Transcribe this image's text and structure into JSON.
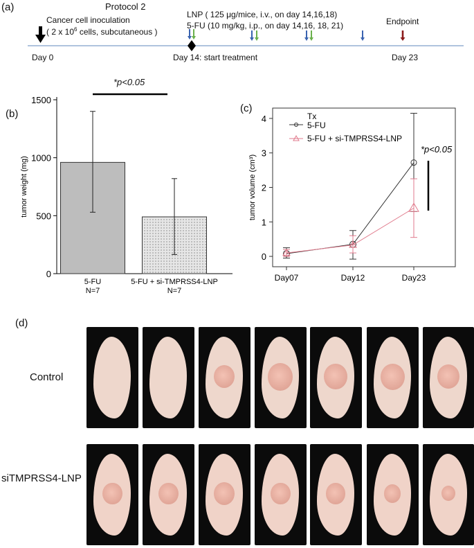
{
  "panel_a": {
    "letter": "(a)",
    "protocol": "Protocol 2",
    "inoculation_line1": "Cancer cell inoculation",
    "inoculation_line2_pre": "( 2 x 10",
    "inoculation_line2_sup": "6",
    "inoculation_line2_post": " cells, subcutaneous )",
    "lnp_text": "LNP ( 125 μg/mice, i.v., on day 14,16,18)",
    "fu_text": "5-FU (10 mg/kg, i.p., on day 14,16, 18, 21)",
    "endpoint": "Endpoint",
    "day0": "Day 0",
    "day14": "Day 14: start treatment",
    "day23": "Day 23",
    "colors": {
      "lnp_arrow": "#3a63b0",
      "fu_arrow": "#6ab04c",
      "endpoint_arrow": "#8b1a1a",
      "timeline": "#7f9fc9"
    }
  },
  "panel_b": {
    "letter": "(b)",
    "significance": "*p<0.05",
    "chart_data": {
      "type": "bar",
      "categories": [
        "5-FU",
        "5-FU + si-TMPRSS4-LNP"
      ],
      "category_sublabels": [
        "N=7",
        "N=7"
      ],
      "values": [
        960,
        490
      ],
      "error_low": [
        530,
        165
      ],
      "error_high": [
        1400,
        820
      ],
      "ylabel": "tumor weight (mg)",
      "xlabel": "",
      "ylim": [
        0,
        1500
      ],
      "yticks": [
        0,
        500,
        1000,
        1500
      ],
      "bar_colors": [
        "#bdbdbd",
        "#e6e6e6"
      ],
      "bar_patterns": [
        "solid",
        "dotted"
      ]
    }
  },
  "panel_c": {
    "letter": "(c)",
    "significance": "*p<0.05",
    "chart_data": {
      "type": "line",
      "x": [
        "Day07",
        "Day12",
        "Day23"
      ],
      "ylabel": "tumor volume (cm³)",
      "ylim": [
        -0.3,
        4.3
      ],
      "yticks": [
        0,
        1,
        2,
        3,
        4
      ],
      "legend_title": "Tx",
      "legend_position": "top-left",
      "series": [
        {
          "name": "5-FU",
          "values": [
            0.08,
            0.35,
            2.72
          ],
          "error_low": [
            -0.05,
            -0.08,
            1.3
          ],
          "error_high": [
            0.25,
            0.75,
            4.15
          ],
          "color": "#333333",
          "marker": "circle"
        },
        {
          "name": "5-FU + si-TMPRSS4-LNP",
          "values": [
            0.1,
            0.33,
            1.4
          ],
          "error_low": [
            0.0,
            0.1,
            0.55
          ],
          "error_high": [
            0.2,
            0.6,
            2.25
          ],
          "color": "#e07a8c",
          "marker": "triangle"
        }
      ]
    }
  },
  "panel_d": {
    "letter": "(d)",
    "rows": [
      {
        "label": "Control",
        "tumor_sizes": [
          0,
          0,
          0.55,
          0.75,
          0.65,
          0.7,
          0.6
        ]
      },
      {
        "label": "siTMPRSS4-LNP",
        "tumor_sizes": [
          0.5,
          0.5,
          0.55,
          0.5,
          0.45,
          0.35,
          0.2
        ]
      }
    ]
  }
}
